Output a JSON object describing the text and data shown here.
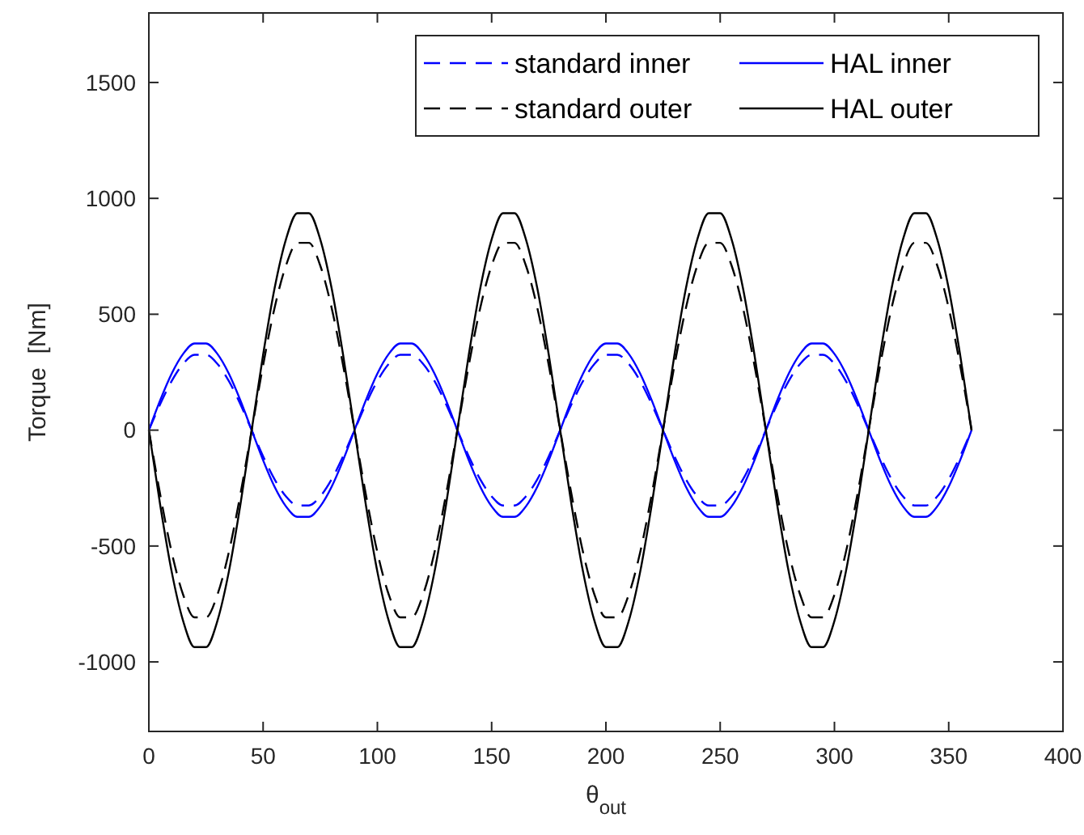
{
  "chart_data": {
    "type": "line",
    "xlabel": "θ$_{out}$",
    "ylabel": "Torque  [Nm]",
    "x": [
      0,
      5,
      10,
      15,
      20,
      25,
      30,
      35,
      40,
      45,
      50,
      55,
      60,
      65,
      70,
      75,
      80,
      85,
      90,
      95,
      100,
      105,
      110,
      115,
      120,
      125,
      130,
      135,
      140,
      145,
      150,
      155,
      160,
      165,
      170,
      175,
      180,
      185,
      190,
      195,
      200,
      205,
      210,
      215,
      220,
      225,
      230,
      235,
      240,
      245,
      250,
      255,
      260,
      265,
      270,
      275,
      280,
      285,
      290,
      295,
      300,
      305,
      310,
      315,
      320,
      325,
      330,
      335,
      340,
      345,
      350,
      355,
      360
    ],
    "series": [
      {
        "name": "standard inner",
        "color": "#0000ff",
        "line_style": "dashed",
        "values": [
          0,
          113,
          212,
          286,
          325,
          325,
          286,
          212,
          113,
          0,
          -113,
          -212,
          -286,
          -325,
          -325,
          -286,
          -212,
          -113,
          0,
          113,
          212,
          286,
          325,
          325,
          286,
          212,
          113,
          0,
          -113,
          -212,
          -286,
          -325,
          -325,
          -286,
          -212,
          -113,
          0,
          113,
          212,
          286,
          325,
          325,
          286,
          212,
          113,
          0,
          -113,
          -212,
          -286,
          -325,
          -325,
          -286,
          -212,
          -113,
          0,
          113,
          212,
          286,
          325,
          325,
          286,
          212,
          113,
          0,
          -113,
          -212,
          -286,
          -325,
          -325,
          -286,
          -212,
          -113,
          0
        ]
      },
      {
        "name": "HAL inner",
        "color": "#0000ff",
        "line_style": "solid",
        "values": [
          0,
          130,
          244,
          329,
          374,
          374,
          329,
          244,
          130,
          0,
          -130,
          -244,
          -329,
          -374,
          -374,
          -329,
          -244,
          -130,
          0,
          130,
          244,
          329,
          374,
          374,
          329,
          244,
          130,
          0,
          -130,
          -244,
          -329,
          -374,
          -374,
          -329,
          -244,
          -130,
          0,
          130,
          244,
          329,
          374,
          374,
          329,
          244,
          130,
          0,
          -130,
          -244,
          -329,
          -374,
          -374,
          -329,
          -244,
          -130,
          0,
          130,
          244,
          329,
          374,
          374,
          329,
          244,
          130,
          0,
          -130,
          -244,
          -329,
          -374,
          -374,
          -329,
          -244,
          -130,
          0
        ]
      },
      {
        "name": "standard outer",
        "color": "#000000",
        "line_style": "dashed",
        "values": [
          0,
          -280,
          -527,
          -710,
          -808,
          -808,
          -710,
          -527,
          -280,
          0,
          280,
          527,
          710,
          808,
          808,
          710,
          527,
          280,
          0,
          -280,
          -527,
          -710,
          -808,
          -808,
          -710,
          -527,
          -280,
          0,
          280,
          527,
          710,
          808,
          808,
          710,
          527,
          280,
          0,
          -280,
          -527,
          -710,
          -808,
          -808,
          -710,
          -527,
          -280,
          0,
          280,
          527,
          710,
          808,
          808,
          710,
          527,
          280,
          0,
          -280,
          -527,
          -710,
          -808,
          -808,
          -710,
          -527,
          -280,
          0,
          280,
          527,
          710,
          808,
          808,
          710,
          527,
          280,
          0
        ]
      },
      {
        "name": "HAL outer",
        "color": "#000000",
        "line_style": "solid",
        "values": [
          0,
          -325,
          -611,
          -823,
          -936,
          -936,
          -823,
          -611,
          -325,
          0,
          325,
          611,
          823,
          936,
          936,
          823,
          611,
          325,
          0,
          -325,
          -611,
          -823,
          -936,
          -936,
          -823,
          -611,
          -325,
          0,
          325,
          611,
          823,
          936,
          936,
          823,
          611,
          325,
          0,
          -325,
          -611,
          -823,
          -936,
          -936,
          -823,
          -611,
          -325,
          0,
          325,
          611,
          823,
          936,
          936,
          823,
          611,
          325,
          0,
          -325,
          -611,
          -823,
          -936,
          -936,
          -823,
          -611,
          -325,
          0,
          325,
          611,
          823,
          936,
          936,
          823,
          611,
          325,
          0
        ]
      }
    ],
    "xlim": [
      0,
      400
    ],
    "xticks": [
      0,
      50,
      100,
      150,
      200,
      250,
      300,
      350,
      400
    ],
    "ylim": [
      -1300,
      1800
    ],
    "yticks": [
      -1000,
      -500,
      0,
      500,
      1000,
      1500
    ],
    "grid": false,
    "legend": "top right"
  }
}
